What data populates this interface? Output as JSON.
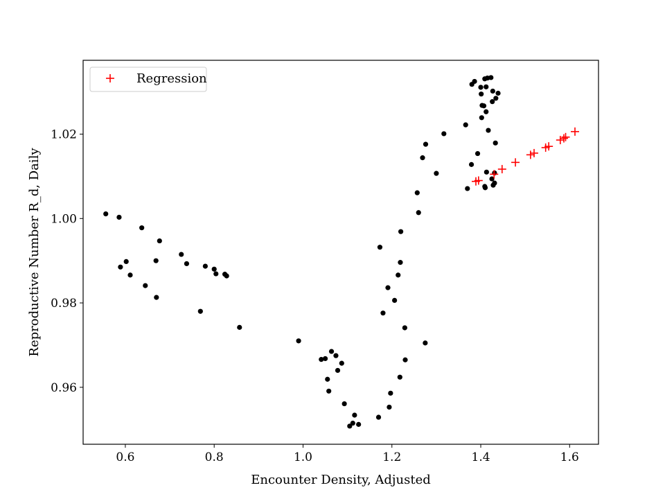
{
  "chart_data": {
    "type": "scatter",
    "title": "",
    "xlabel": "Encounter Density, Adjusted",
    "ylabel": "Reproductive Number R_d, Daily",
    "xlim": [
      0.505,
      1.665
    ],
    "ylim": [
      0.9465,
      1.0375
    ],
    "xticks": [
      0.6,
      0.8,
      1.0,
      1.2,
      1.4,
      1.6
    ],
    "xtick_labels": [
      "0.6",
      "0.8",
      "1.0",
      "1.2",
      "1.4",
      "1.6"
    ],
    "yticks": [
      0.96,
      0.98,
      1.0,
      1.02
    ],
    "ytick_labels": [
      "0.96",
      "0.98",
      "1.00",
      "1.02"
    ],
    "grid": false,
    "legend_position": "top-left",
    "series": [
      {
        "marker": "dot",
        "color": "#000000",
        "points": [
          [
            0.556,
            1.0011
          ],
          [
            0.586,
            1.0003
          ],
          [
            0.589,
            0.9885
          ],
          [
            0.602,
            0.9898
          ],
          [
            0.611,
            0.9866
          ],
          [
            0.637,
            0.9978
          ],
          [
            0.645,
            0.9841
          ],
          [
            0.669,
            0.99
          ],
          [
            0.67,
            0.9813
          ],
          [
            0.677,
            0.9947
          ],
          [
            0.726,
            0.9915
          ],
          [
            0.738,
            0.9893
          ],
          [
            0.769,
            0.978
          ],
          [
            0.78,
            0.9887
          ],
          [
            0.8,
            0.988
          ],
          [
            0.804,
            0.9869
          ],
          [
            0.824,
            0.9868
          ],
          [
            0.828,
            0.9864
          ],
          [
            0.857,
            0.9742
          ],
          [
            0.99,
            0.971
          ],
          [
            1.041,
            0.9666
          ],
          [
            1.05,
            0.9668
          ],
          [
            1.055,
            0.9619
          ],
          [
            1.058,
            0.9591
          ],
          [
            1.064,
            0.9685
          ],
          [
            1.074,
            0.9675
          ],
          [
            1.078,
            0.964
          ],
          [
            1.087,
            0.9657
          ],
          [
            1.093,
            0.9561
          ],
          [
            1.105,
            0.9508
          ],
          [
            1.112,
            0.9515
          ],
          [
            1.116,
            0.9534
          ],
          [
            1.125,
            0.9512
          ],
          [
            1.17,
            0.9529
          ],
          [
            1.173,
            0.9932
          ],
          [
            1.18,
            0.9776
          ],
          [
            1.191,
            0.9836
          ],
          [
            1.194,
            0.9553
          ],
          [
            1.197,
            0.9586
          ],
          [
            1.206,
            0.9806
          ],
          [
            1.214,
            0.9866
          ],
          [
            1.218,
            0.9624
          ],
          [
            1.219,
            0.9896
          ],
          [
            1.22,
            0.9969
          ],
          [
            1.229,
            0.9741
          ],
          [
            1.23,
            0.9665
          ],
          [
            1.257,
            1.0061
          ],
          [
            1.26,
            1.0014
          ],
          [
            1.269,
            1.0144
          ],
          [
            1.275,
            0.9705
          ],
          [
            1.276,
            1.0176
          ],
          [
            1.3,
            1.0107
          ],
          [
            1.317,
            1.0201
          ],
          [
            1.366,
            1.0222
          ],
          [
            1.37,
            1.0071
          ],
          [
            1.379,
            1.0128
          ],
          [
            1.38,
            1.0318
          ],
          [
            1.386,
            1.0325
          ],
          [
            1.393,
            1.0154
          ],
          [
            1.4,
            1.0311
          ],
          [
            1.401,
            1.0295
          ],
          [
            1.402,
            1.0239
          ],
          [
            1.403,
            1.0268
          ],
          [
            1.407,
            1.0267
          ],
          [
            1.409,
            1.0076
          ],
          [
            1.409,
            1.0331
          ],
          [
            1.41,
            1.0073
          ],
          [
            1.412,
            1.0312
          ],
          [
            1.412,
            1.0253
          ],
          [
            1.413,
            1.011
          ],
          [
            1.415,
            1.0333
          ],
          [
            1.417,
            1.0209
          ],
          [
            1.423,
            1.0334
          ],
          [
            1.425,
            1.0094
          ],
          [
            1.426,
            1.0277
          ],
          [
            1.427,
            1.0302
          ],
          [
            1.428,
            1.0079
          ],
          [
            1.431,
            1.0108
          ],
          [
            1.431,
            1.0084
          ],
          [
            1.433,
            1.0179
          ],
          [
            1.434,
            1.0285
          ],
          [
            1.439,
            1.0297
          ]
        ]
      },
      {
        "name": "Regression",
        "marker": "plus",
        "color": "#ff0000",
        "points": [
          [
            1.389,
            1.0088
          ],
          [
            1.395,
            1.009
          ],
          [
            1.43,
            1.0105
          ],
          [
            1.448,
            1.0117
          ],
          [
            1.478,
            1.0133
          ],
          [
            1.512,
            1.0151
          ],
          [
            1.52,
            1.0155
          ],
          [
            1.546,
            1.0168
          ],
          [
            1.553,
            1.0171
          ],
          [
            1.579,
            1.0186
          ],
          [
            1.587,
            1.019
          ],
          [
            1.591,
            1.0193
          ],
          [
            1.612,
            1.0206
          ]
        ]
      }
    ]
  }
}
